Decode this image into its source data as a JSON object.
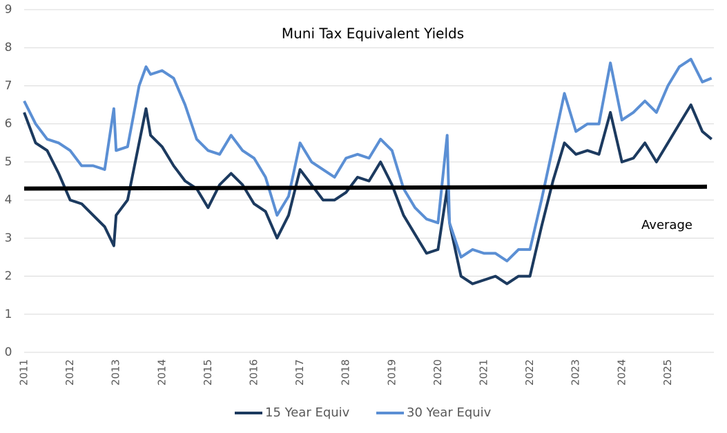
{
  "chart_data": {
    "type": "line",
    "title": "Muni Tax Equivalent Yields",
    "x": [
      2011,
      2011.25,
      2011.5,
      2011.75,
      2012,
      2012.25,
      2012.5,
      2012.75,
      2012.95,
      2013,
      2013.25,
      2013.5,
      2013.65,
      2013.75,
      2014,
      2014.25,
      2014.5,
      2014.75,
      2015,
      2015.25,
      2015.5,
      2015.75,
      2016,
      2016.25,
      2016.5,
      2016.75,
      2017,
      2017.25,
      2017.5,
      2017.75,
      2018,
      2018.25,
      2018.5,
      2018.75,
      2019,
      2019.25,
      2019.5,
      2019.75,
      2020,
      2020.2,
      2020.25,
      2020.5,
      2020.75,
      2021,
      2021.25,
      2021.5,
      2021.75,
      2022,
      2022.25,
      2022.5,
      2022.75,
      2023,
      2023.25,
      2023.5,
      2023.75,
      2024,
      2024.25,
      2024.5,
      2024.75,
      2025,
      2025.25,
      2025.5,
      2025.75,
      2025.95
    ],
    "series": [
      {
        "name": "15 Year Equiv",
        "color": "#1c3a5f",
        "values": [
          6.3,
          5.5,
          5.3,
          4.7,
          4.0,
          3.9,
          3.6,
          3.3,
          2.8,
          3.6,
          4.0,
          5.5,
          6.4,
          5.7,
          5.4,
          4.9,
          4.5,
          4.3,
          3.8,
          4.4,
          4.7,
          4.4,
          3.9,
          3.7,
          3.0,
          3.6,
          4.8,
          4.4,
          4.0,
          4.0,
          4.2,
          4.6,
          4.5,
          5.0,
          4.4,
          3.6,
          3.1,
          2.6,
          2.7,
          4.3,
          3.4,
          2.0,
          1.8,
          1.9,
          2.0,
          1.8,
          2.0,
          2.0,
          3.3,
          4.5,
          5.5,
          5.2,
          5.3,
          5.2,
          6.3,
          5.0,
          5.1,
          5.5,
          5.0,
          5.5,
          6.0,
          6.5,
          5.8,
          5.6
        ]
      },
      {
        "name": "30 Year Equiv",
        "color": "#5b8fd4",
        "values": [
          6.6,
          6.0,
          5.6,
          5.5,
          5.3,
          4.9,
          4.9,
          4.8,
          6.4,
          5.3,
          5.4,
          7.0,
          7.5,
          7.3,
          7.4,
          7.2,
          6.5,
          5.6,
          5.3,
          5.2,
          5.7,
          5.3,
          5.1,
          4.6,
          3.6,
          4.1,
          5.5,
          5.0,
          4.8,
          4.6,
          5.1,
          5.2,
          5.1,
          5.6,
          5.3,
          4.3,
          3.8,
          3.5,
          3.4,
          5.7,
          3.4,
          2.5,
          2.7,
          2.6,
          2.6,
          2.4,
          2.7,
          2.7,
          4.0,
          5.4,
          6.8,
          5.8,
          6.0,
          6.0,
          7.6,
          6.1,
          6.3,
          6.6,
          6.3,
          7.0,
          7.5,
          7.7,
          7.1,
          7.2
        ]
      }
    ],
    "average_line": {
      "label": "Average",
      "color": "#000000",
      "x": [
        2011,
        2025.85
      ],
      "values": [
        4.3,
        4.35
      ]
    },
    "xlim": [
      2011,
      2026
    ],
    "xticks": [
      2011,
      2012,
      2013,
      2014,
      2015,
      2016,
      2017,
      2018,
      2019,
      2020,
      2021,
      2022,
      2023,
      2024,
      2025
    ],
    "ylim": [
      0,
      9
    ],
    "yticks": [
      0,
      1,
      2,
      3,
      4,
      5,
      6,
      7,
      8,
      9
    ],
    "grid": true,
    "legend": "bottom"
  }
}
